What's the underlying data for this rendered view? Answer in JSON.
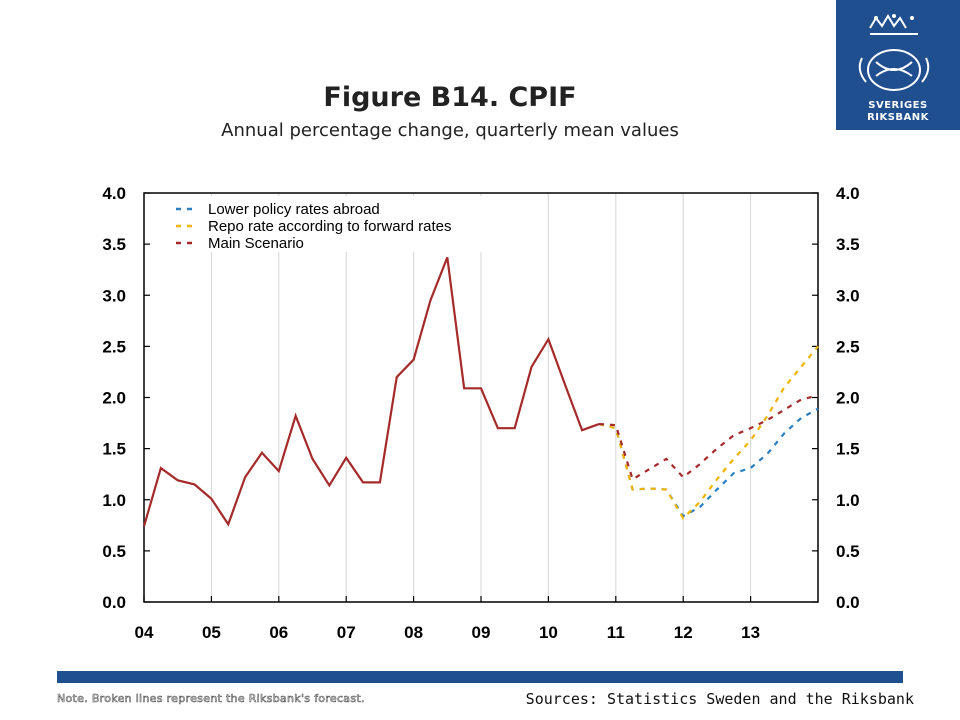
{
  "brand": {
    "line1": "SVERIGES",
    "line2": "RIKSBANK",
    "color": "#1f4f8f"
  },
  "title": "Figure B14. CPIF",
  "subtitle": "Annual percentage change, quarterly mean values",
  "note": "Note. Broken lines represent the Riksbank's forecast.",
  "sources": "Sources: Statistics Sweden and the Riksbank",
  "chart_data": {
    "type": "line",
    "ylim": [
      0,
      4
    ],
    "yticks": [
      "0.0",
      "0.5",
      "1.0",
      "1.5",
      "2.0",
      "2.5",
      "3.0",
      "3.5",
      "4.0"
    ],
    "xlim": [
      2004,
      2014
    ],
    "xticks": [
      "04",
      "05",
      "06",
      "07",
      "08",
      "09",
      "10",
      "11",
      "12",
      "13"
    ],
    "grid": true,
    "legend_position": "top-left",
    "outcome": {
      "color": "#a52a2a",
      "x": [
        2004.0,
        2004.25,
        2004.5,
        2004.75,
        2005.0,
        2005.25,
        2005.5,
        2005.75,
        2006.0,
        2006.25,
        2006.5,
        2006.75,
        2007.0,
        2007.25,
        2007.5,
        2007.75,
        2008.0,
        2008.25,
        2008.5,
        2008.75,
        2009.0,
        2009.25,
        2009.5,
        2009.75,
        2010.0,
        2010.25,
        2010.5,
        2010.75
      ],
      "y": [
        0.74,
        1.31,
        1.19,
        1.15,
        1.01,
        0.76,
        1.22,
        1.46,
        1.28,
        1.82,
        1.4,
        1.14,
        1.41,
        1.17,
        1.17,
        2.2,
        2.37,
        2.95,
        3.37,
        2.09,
        2.09,
        1.7,
        1.7,
        2.3,
        2.57,
        2.12,
        1.68,
        1.74
      ]
    },
    "series": [
      {
        "name": "Lower policy rates abroad",
        "color": "#2a7fc1",
        "x": [
          2010.75,
          2011.0,
          2011.25,
          2011.5,
          2011.75,
          2012.0,
          2012.25,
          2012.5,
          2012.75,
          2013.0,
          2013.25,
          2013.5,
          2013.75,
          2014.0
        ],
        "y": [
          1.74,
          1.7,
          1.1,
          1.11,
          1.1,
          0.84,
          0.93,
          1.1,
          1.26,
          1.31,
          1.45,
          1.65,
          1.8,
          1.89
        ]
      },
      {
        "name": "Repo rate according to forward rates",
        "color": "#f0b400",
        "x": [
          2010.75,
          2011.0,
          2011.25,
          2011.5,
          2011.75,
          2012.0,
          2012.25,
          2012.5,
          2012.75,
          2013.0,
          2013.25,
          2013.5,
          2013.75,
          2014.0
        ],
        "y": [
          1.74,
          1.7,
          1.1,
          1.11,
          1.1,
          0.82,
          0.98,
          1.2,
          1.4,
          1.58,
          1.82,
          2.1,
          2.3,
          2.5
        ]
      },
      {
        "name": "Main Scenario",
        "color": "#a52a2a",
        "x": [
          2010.75,
          2011.0,
          2011.25,
          2011.5,
          2011.75,
          2012.0,
          2012.25,
          2012.5,
          2012.75,
          2013.0,
          2013.25,
          2013.5,
          2013.75,
          2014.0
        ],
        "y": [
          1.74,
          1.73,
          1.2,
          1.3,
          1.4,
          1.22,
          1.35,
          1.5,
          1.63,
          1.7,
          1.78,
          1.88,
          1.98,
          2.02
        ]
      }
    ]
  }
}
